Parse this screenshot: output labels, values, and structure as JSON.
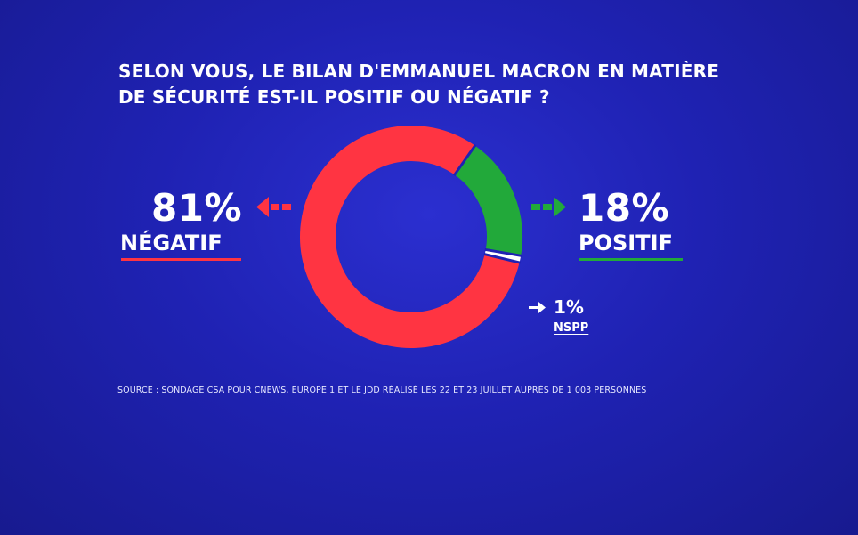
{
  "question": {
    "line1": "SELON VOUS, LE BILAN D'EMMANUEL MACRON EN MATIÈRE",
    "line2": "DE SÉCURITÉ EST-IL POSITIF OU NÉGATIF ?"
  },
  "chart_data": {
    "type": "pie",
    "title": "SELON VOUS, LE BILAN D'EMMANUEL MACRON EN MATIÈRE DE SÉCURITÉ EST-IL POSITIF OU NÉGATIF ?",
    "slices": [
      {
        "label": "POSITIF",
        "value": 18,
        "display": "18%",
        "color": "#22a93a"
      },
      {
        "label": "NSPP",
        "value": 1,
        "display": "1%",
        "color": "#ffffff"
      },
      {
        "label": "NÉGATIF",
        "value": 81,
        "display": "81%",
        "color": "#ff3442"
      }
    ]
  },
  "labels": {
    "negatif_pct": "81%",
    "negatif_label": "NÉGATIF",
    "positif_pct": "18%",
    "positif_label": "POSITIF",
    "nspp_pct": "1%",
    "nspp_label": "NSPP"
  },
  "source": "SOURCE : SONDAGE CSA POUR CNEWS, EUROPE 1 ET LE JDD RÉALISÉ LES 22 ET 23 JUILLET AUPRÈS DE 1 003 PERSONNES",
  "colors": {
    "background": "#1f22b3",
    "negative": "#ff3442",
    "positive": "#22a93a",
    "neutral": "#ffffff"
  }
}
